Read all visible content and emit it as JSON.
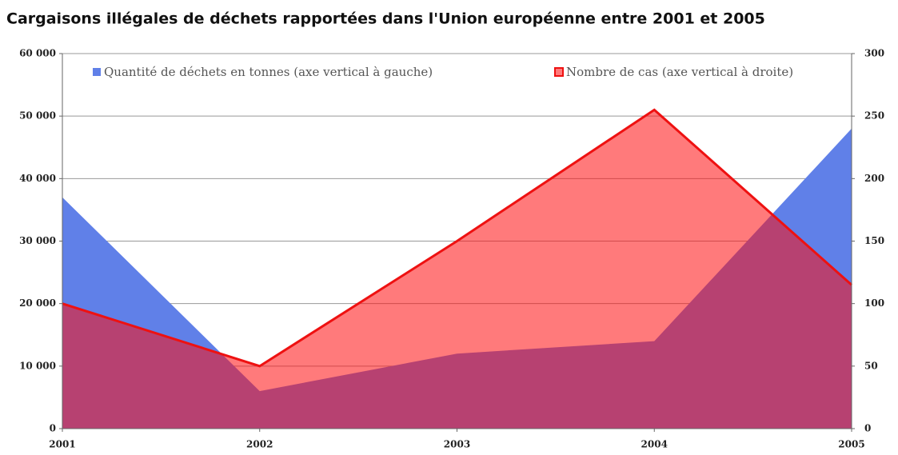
{
  "chart_data": {
    "type": "area",
    "title": "Cargaisons illégales de déchets rapportées dans l'Union européenne entre 2001 et 2005",
    "categories": [
      "2001",
      "2002",
      "2003",
      "2004",
      "2005"
    ],
    "series": [
      {
        "name": "Quantité de déchets en tonnes (axe vertical à gauche)",
        "color": "#6080e8",
        "values": [
          37000,
          6000,
          12000,
          14000,
          48000
        ]
      },
      {
        "name": "Nombre de cas (axe vertical à droite)",
        "color": "#ee1111",
        "axis": "y2",
        "values": [
          100,
          50,
          150,
          255,
          115
        ]
      }
    ],
    "ylim": [
      0,
      60000
    ],
    "yticks": [
      0,
      {
        "value": 10000,
        "label": "10 000"
      },
      {
        "value": 20000,
        "label": "20 000"
      },
      {
        "value": 30000,
        "label": "30 000"
      },
      {
        "value": 40000,
        "label": "40 000"
      },
      {
        "value": 50000,
        "label": "50 000"
      },
      {
        "value": 60000,
        "label": "60 000"
      }
    ],
    "y2lim": [
      0,
      300
    ],
    "y2ticks": [
      0,
      50,
      100,
      150,
      200,
      250,
      300
    ],
    "grid": true,
    "legend": "top"
  }
}
